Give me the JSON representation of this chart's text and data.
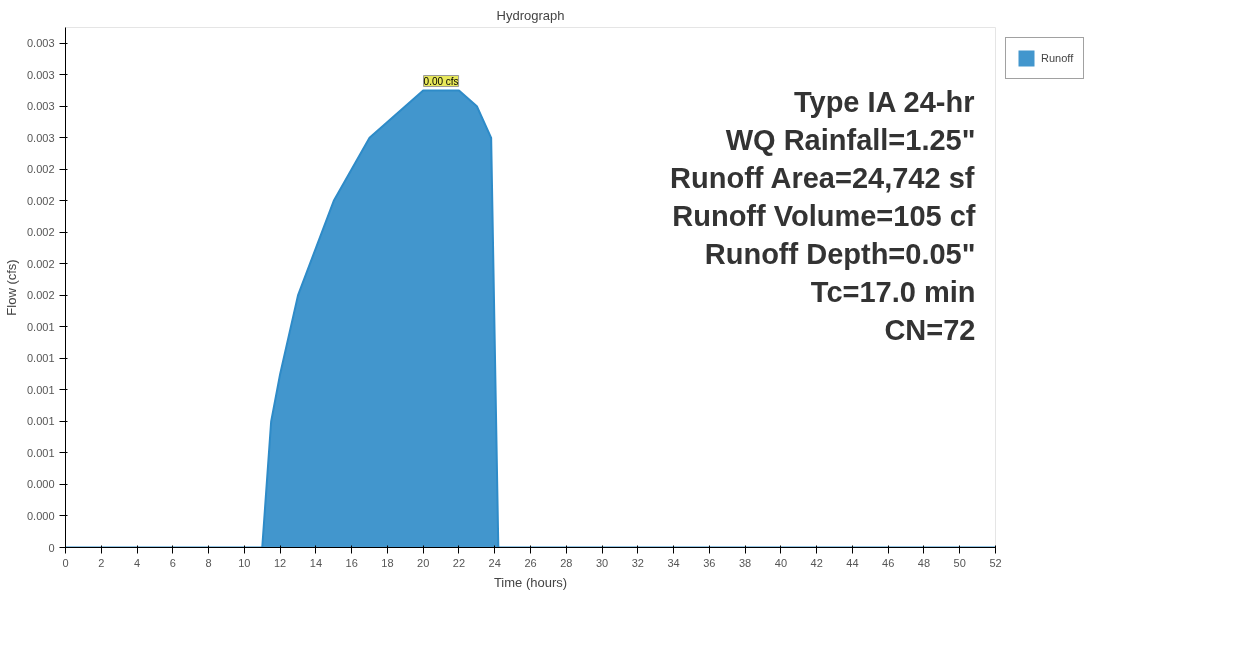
{
  "chart_data": {
    "type": "area",
    "title": "Hydrograph",
    "xlabel": "Time (hours)",
    "ylabel": "Flow (cfs)",
    "x": [
      0,
      11,
      11.5,
      12,
      13,
      14,
      15,
      16,
      17,
      18,
      19,
      20,
      21,
      22,
      23,
      23.8,
      24.2,
      52
    ],
    "series": [
      {
        "name": "Runoff",
        "color": "#2e8bc8",
        "values": [
          0,
          0,
          0.0008,
          0.0011,
          0.0016,
          0.0019,
          0.0022,
          0.0024,
          0.0026,
          0.0027,
          0.0028,
          0.0029,
          0.0029,
          0.0029,
          0.0028,
          0.0026,
          0,
          0
        ]
      }
    ],
    "xlim": [
      0,
      52
    ],
    "xticks": [
      0,
      2,
      4,
      6,
      8,
      10,
      12,
      14,
      16,
      18,
      20,
      22,
      24,
      26,
      28,
      30,
      32,
      34,
      36,
      38,
      40,
      42,
      44,
      46,
      48,
      50,
      52
    ],
    "ylim": [
      0,
      0.0033
    ],
    "yticks": [
      {
        "value": 0,
        "label": "0"
      },
      {
        "value": 0.0002,
        "label": "0.000"
      },
      {
        "value": 0.0004,
        "label": "0.000"
      },
      {
        "value": 0.0006,
        "label": "0.001"
      },
      {
        "value": 0.0008,
        "label": "0.001"
      },
      {
        "value": 0.001,
        "label": "0.001"
      },
      {
        "value": 0.0012,
        "label": "0.001"
      },
      {
        "value": 0.0014,
        "label": "0.001"
      },
      {
        "value": 0.0016,
        "label": "0.002"
      },
      {
        "value": 0.0018,
        "label": "0.002"
      },
      {
        "value": 0.002,
        "label": "0.002"
      },
      {
        "value": 0.0022,
        "label": "0.002"
      },
      {
        "value": 0.0024,
        "label": "0.002"
      },
      {
        "value": 0.0026,
        "label": "0.003"
      },
      {
        "value": 0.0028,
        "label": "0.003"
      },
      {
        "value": 0.003,
        "label": "0.003"
      },
      {
        "value": 0.0032,
        "label": "0.003"
      }
    ],
    "annotations": [
      {
        "text": "0.00 cfs",
        "x": 21,
        "y": 0.0029
      },
      "Type IA 24-hr",
      "WQ Rainfall=1.25\"",
      "Runoff Area=24,742 sf",
      "Runoff Volume=105 cf",
      "Runoff Depth=0.05\"",
      "Tc=17.0 min",
      "CN=72"
    ],
    "legend": "top right",
    "grid": false
  }
}
